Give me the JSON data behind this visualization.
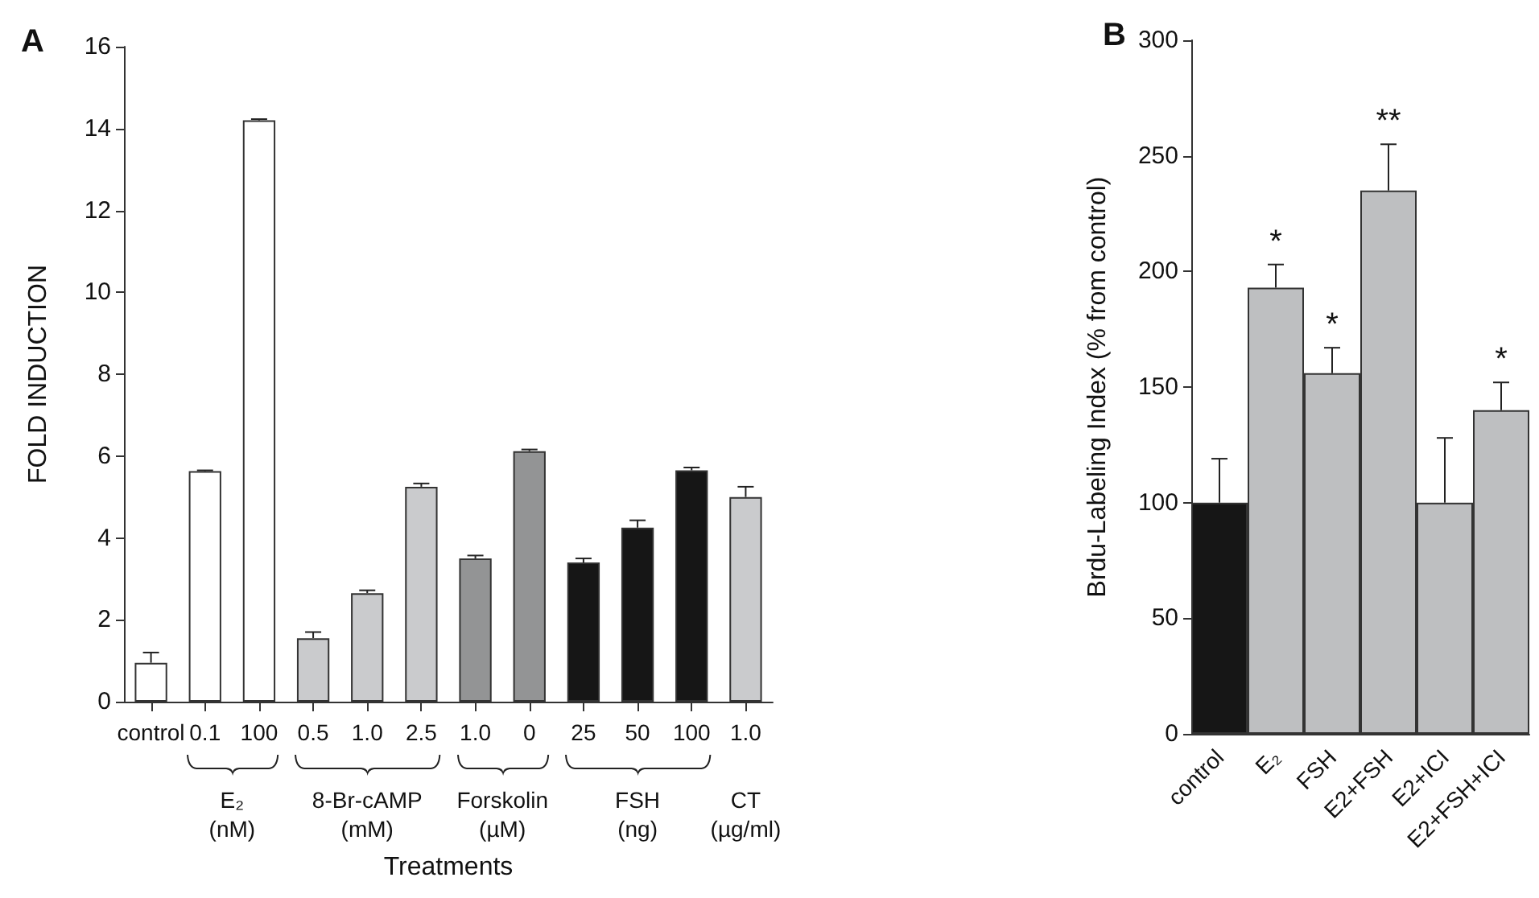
{
  "chart_data": [
    {
      "type": "bar",
      "title": "A",
      "xlabel": "Treatments",
      "ylabel": "FOLD INDUCTION",
      "categories": [
        "control",
        "0.1",
        "100",
        "0.5",
        "1.0",
        "2.5",
        "1.0",
        "0",
        "25",
        "50",
        "100",
        "1.0"
      ],
      "values": [
        0.95,
        5.63,
        14.2,
        1.55,
        2.65,
        5.25,
        3.5,
        6.12,
        3.4,
        4.25,
        5.65,
        5.0
      ],
      "errors": [
        0.25,
        0.02,
        0.03,
        0.15,
        0.07,
        0.08,
        0.07,
        0.04,
        0.1,
        0.18,
        0.07,
        0.25
      ],
      "colors": [
        "#ffffff",
        "#ffffff",
        "#ffffff",
        "#cacbcd",
        "#cacbcd",
        "#cacbcd",
        "#939495",
        "#939495",
        "#161616",
        "#161616",
        "#161616",
        "#cacbcd"
      ],
      "annotations": [
        "E₂\n(nM)",
        "8-Br-cAMP\n(mM)",
        "Forskolin\n(µM)",
        "FSH\n(ng)",
        "CT\n(µg/ml)"
      ],
      "ylim": [
        0,
        16
      ],
      "yticks": [
        0,
        2,
        4,
        6,
        8,
        10,
        12,
        14,
        16
      ],
      "grid": false
    },
    {
      "type": "bar",
      "title": "B",
      "ylabel": "Brdu-Labeling Index (% from control)",
      "categories": [
        "control",
        "E₂",
        "FSH",
        "E2+FSH",
        "E2+ICI",
        "E2+FSH+ICI"
      ],
      "values": [
        100,
        193,
        156,
        235,
        100,
        140
      ],
      "errors": [
        19,
        10,
        11,
        20,
        28,
        12
      ],
      "colors": [
        "#161616",
        "#bebfc1",
        "#bebfc1",
        "#bebfc1",
        "#bebfc1",
        "#bebfc1"
      ],
      "annotations": [
        {
          "text": "*",
          "x": "E₂",
          "y": 203
        },
        {
          "text": "*",
          "x": "FSH",
          "y": 167
        },
        {
          "text": "**",
          "x": "E2+FSH",
          "y": 255
        },
        {
          "text": "*",
          "x": "E2+FSH+ICI",
          "y": 152
        }
      ],
      "ylim": [
        0,
        300
      ],
      "yticks": [
        0,
        50,
        100,
        150,
        200,
        250,
        300
      ],
      "grid": false
    }
  ]
}
